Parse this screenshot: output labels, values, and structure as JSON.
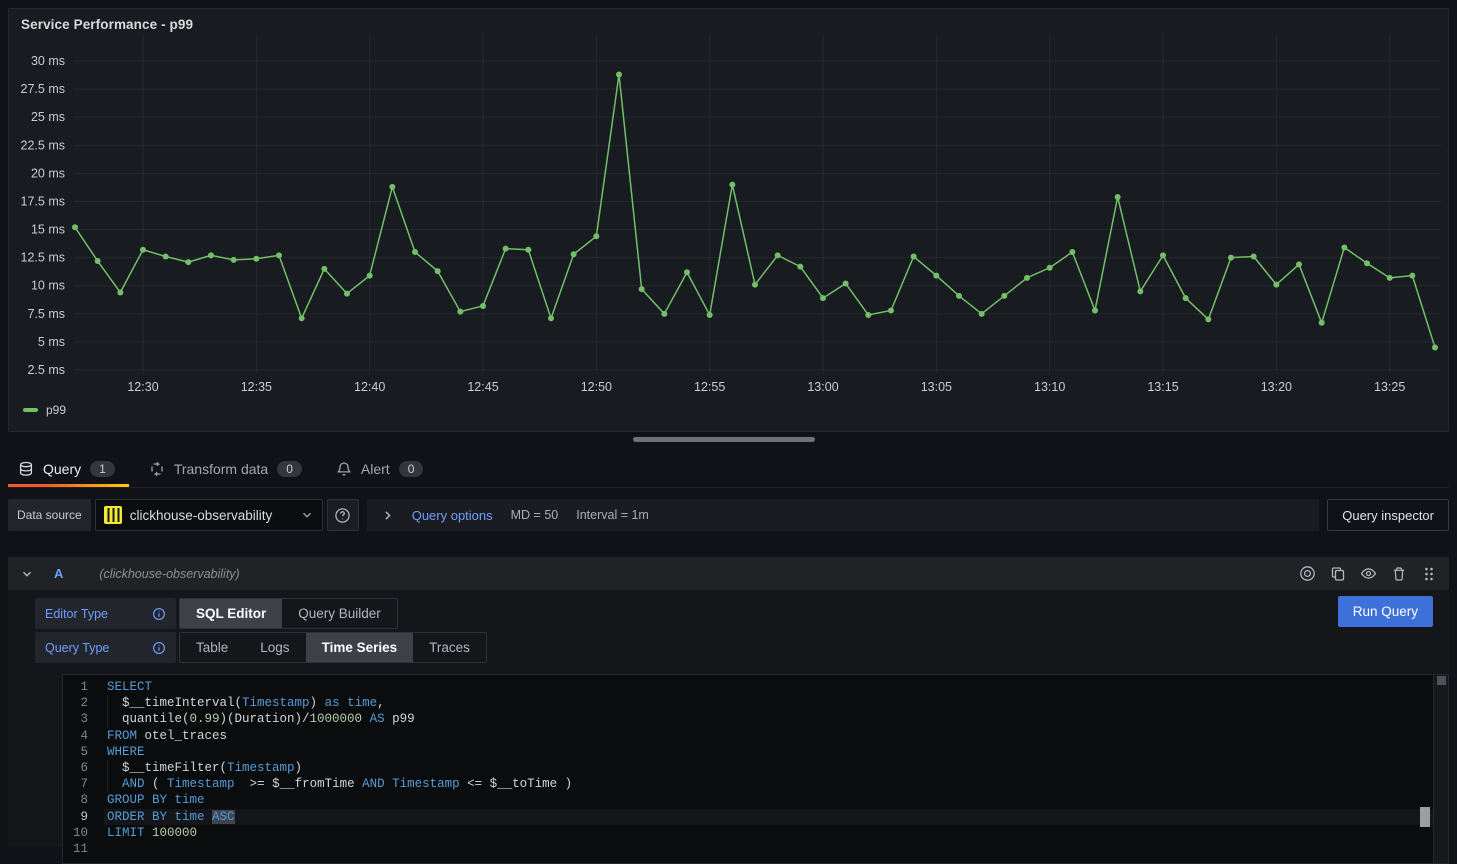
{
  "panel": {
    "title": "Service Performance - p99",
    "legend": "p99"
  },
  "chart_data": {
    "type": "line",
    "title": "Service Performance - p99",
    "x_start": "12:27",
    "x_interval_minutes": 1,
    "x_tick_labels": [
      "12:30",
      "12:35",
      "12:40",
      "12:45",
      "12:50",
      "12:55",
      "13:00",
      "13:05",
      "13:10",
      "13:15",
      "13:20",
      "13:25"
    ],
    "x_first_tick_index": 3,
    "x_tick_step": 5,
    "y_ticks": [
      2.5,
      5,
      7.5,
      10,
      12.5,
      15,
      17.5,
      20,
      22.5,
      25,
      27.5,
      30
    ],
    "y_unit": "ms",
    "ylim": [
      1.25,
      32.5
    ],
    "grid": true,
    "legend_position": "bottom-left",
    "series": [
      {
        "name": "p99",
        "color": "#73BF69",
        "values": [
          15.2,
          12.2,
          9.4,
          13.2,
          12.6,
          12.1,
          12.7,
          12.3,
          12.4,
          12.7,
          7.1,
          11.5,
          9.3,
          10.9,
          18.8,
          13.0,
          11.3,
          7.7,
          8.2,
          13.3,
          13.2,
          7.1,
          12.8,
          14.4,
          28.8,
          9.7,
          7.5,
          11.2,
          7.4,
          19.0,
          10.1,
          12.7,
          11.7,
          8.9,
          10.2,
          7.4,
          7.8,
          12.6,
          10.9,
          9.1,
          7.5,
          9.1,
          10.7,
          11.6,
          13.0,
          7.8,
          17.9,
          9.5,
          12.7,
          8.9,
          7.0,
          12.5,
          12.6,
          10.1,
          11.9,
          6.7,
          13.4,
          12.0,
          10.7,
          10.9,
          4.5
        ]
      }
    ]
  },
  "tabs": [
    {
      "label": "Query",
      "count": "1",
      "icon": "database-icon",
      "active": true
    },
    {
      "label": "Transform data",
      "count": "0",
      "icon": "transform-icon",
      "active": false
    },
    {
      "label": "Alert",
      "count": "0",
      "icon": "bell-icon",
      "active": false
    }
  ],
  "datasource_row": {
    "label": "Data source",
    "picker_value": "clickhouse-observability",
    "query_options_label": "Query options",
    "md": "MD = 50",
    "interval": "Interval = 1m",
    "inspector_button": "Query inspector"
  },
  "query_row": {
    "ref_id": "A",
    "datasource_hint": "(clickhouse-observability)",
    "editor_type_label": "Editor Type",
    "editor_type_options": [
      "SQL Editor",
      "Query Builder"
    ],
    "editor_type_selected": "SQL Editor",
    "query_type_label": "Query Type",
    "query_type_options": [
      "Table",
      "Logs",
      "Time Series",
      "Traces"
    ],
    "query_type_selected": "Time Series",
    "run_button": "Run Query"
  },
  "code": {
    "lines": [
      {
        "n": "1",
        "tokens": [
          [
            "kw",
            "SELECT"
          ]
        ]
      },
      {
        "n": "2",
        "guide": true,
        "tokens": [
          [
            "def",
            "  $__timeInterval("
          ],
          [
            "kw",
            "Timestamp"
          ],
          [
            "def",
            ") "
          ],
          [
            "kw",
            "as"
          ],
          [
            "def",
            " "
          ],
          [
            "kw",
            "time"
          ],
          [
            "def",
            ","
          ]
        ]
      },
      {
        "n": "3",
        "guide": true,
        "tokens": [
          [
            "def",
            "  quantile("
          ],
          [
            "num",
            "0.99"
          ],
          [
            "def",
            ")(Duration)/"
          ],
          [
            "num",
            "1000000"
          ],
          [
            "def",
            " "
          ],
          [
            "kw",
            "AS"
          ],
          [
            "def",
            " p99"
          ]
        ]
      },
      {
        "n": "4",
        "tokens": [
          [
            "kw",
            "FROM"
          ],
          [
            "def",
            " otel_traces"
          ]
        ]
      },
      {
        "n": "5",
        "tokens": [
          [
            "kw",
            "WHERE"
          ]
        ]
      },
      {
        "n": "6",
        "guide": true,
        "tokens": [
          [
            "def",
            "  $__timeFilter("
          ],
          [
            "kw",
            "Timestamp"
          ],
          [
            "def",
            ")"
          ]
        ]
      },
      {
        "n": "7",
        "guide": true,
        "tokens": [
          [
            "def",
            "  "
          ],
          [
            "kw",
            "AND"
          ],
          [
            "def",
            " ( "
          ],
          [
            "kw",
            "Timestamp"
          ],
          [
            "def",
            "  >= $__fromTime "
          ],
          [
            "kw",
            "AND"
          ],
          [
            "def",
            " "
          ],
          [
            "kw",
            "Timestamp"
          ],
          [
            "def",
            " <= $__toTime )"
          ]
        ]
      },
      {
        "n": "8",
        "tokens": [
          [
            "kw",
            "GROUP BY time"
          ]
        ]
      },
      {
        "n": "9",
        "current": true,
        "tokens": [
          [
            "kw",
            "ORDER BY time "
          ],
          [
            "kwsel",
            "ASC"
          ]
        ]
      },
      {
        "n": "10",
        "tokens": [
          [
            "kw",
            "LIMIT"
          ],
          [
            "def",
            " "
          ],
          [
            "num",
            "100000"
          ]
        ]
      },
      {
        "n": "11",
        "tokens": []
      }
    ]
  },
  "colors": {
    "series_green": "#73BF69",
    "link_blue": "#6E9FFF",
    "primary_button_blue": "#3D71D9",
    "active_tab_gradient": [
      "#f05a28",
      "#fbca0a"
    ],
    "clickhouse_yellow": "#F5E935",
    "panel_bg": "#181B1F",
    "page_bg": "#111217",
    "code_bg": "#0B0C0E"
  }
}
